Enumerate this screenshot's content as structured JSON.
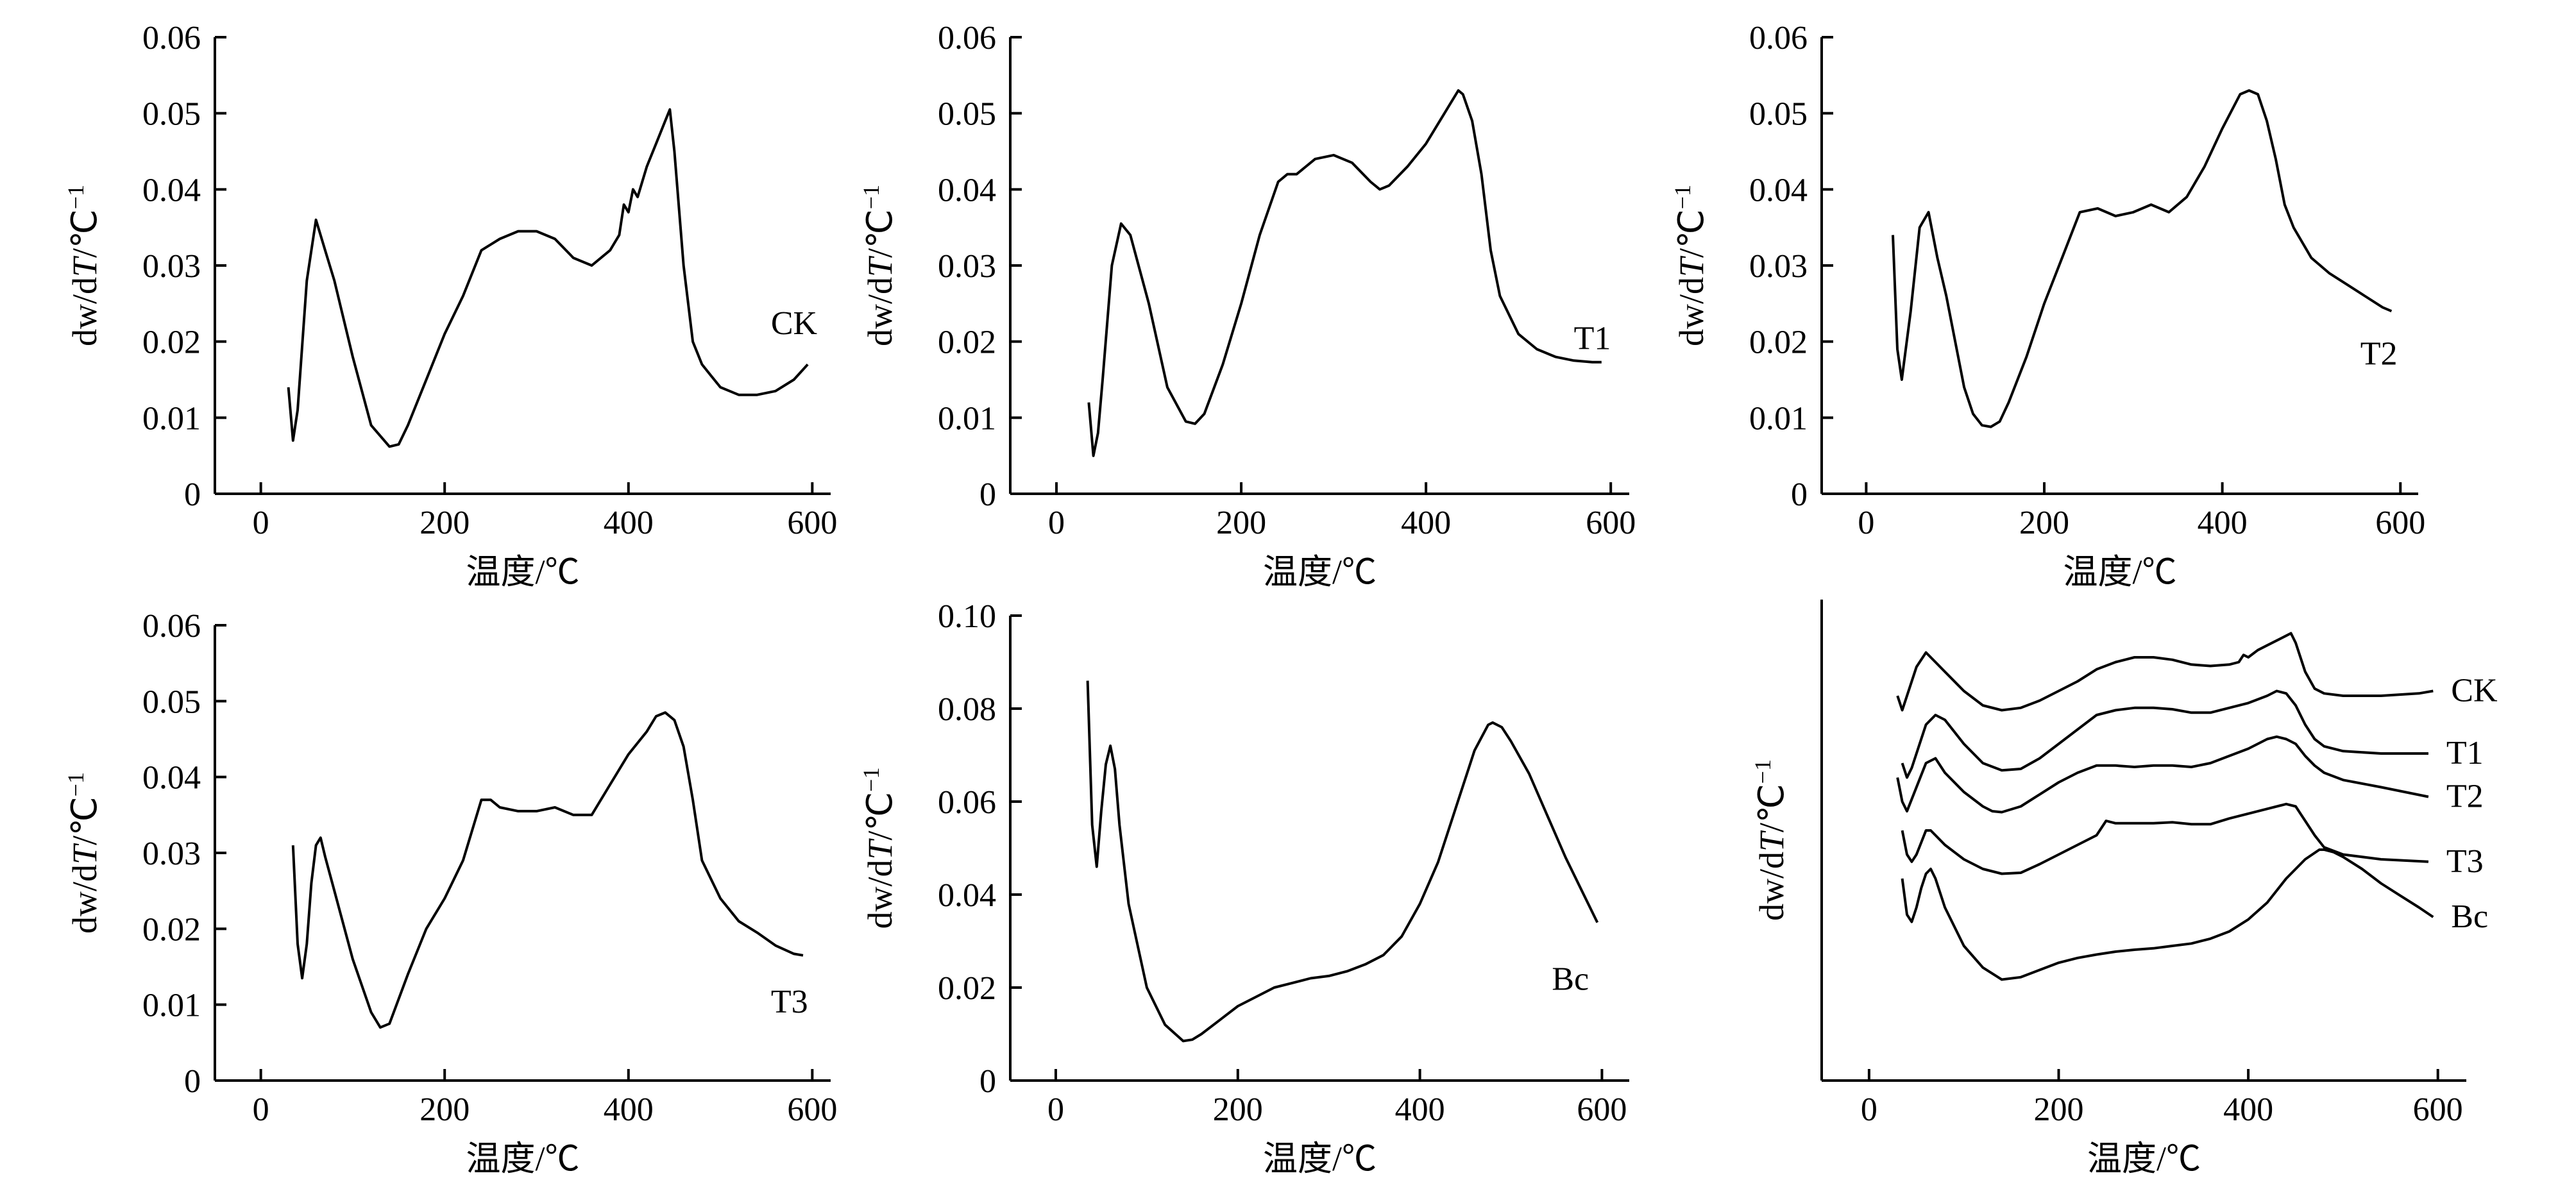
{
  "chart_data": [
    {
      "id": "CK",
      "type": "line",
      "title": "",
      "xlabel": "温度/℃",
      "ylabel": "dw/dT/℃⁻¹",
      "ylabel_parts": [
        "dw/d",
        "T",
        "/℃",
        "−1"
      ],
      "xlim": [
        -50,
        620
      ],
      "ylim": [
        0,
        0.06
      ],
      "xticks": [
        0,
        200,
        400,
        600
      ],
      "yticks": [
        0,
        0.01,
        0.02,
        0.03,
        0.04,
        0.05,
        0.06
      ],
      "ytick_labels": [
        "0",
        "0.01",
        "0.02",
        "0.03",
        "0.04",
        "0.05",
        "0.06"
      ],
      "label": "CK",
      "label_at": [
        555,
        0.0225
      ],
      "x": [
        30,
        35,
        40,
        50,
        60,
        70,
        80,
        100,
        120,
        140,
        150,
        160,
        180,
        200,
        220,
        240,
        260,
        280,
        300,
        320,
        340,
        360,
        380,
        390,
        395,
        400,
        405,
        410,
        420,
        430,
        440,
        445,
        450,
        460,
        470,
        480,
        490,
        500,
        520,
        540,
        560,
        580,
        595
      ],
      "y": [
        0.014,
        0.007,
        0.011,
        0.028,
        0.036,
        0.032,
        0.028,
        0.018,
        0.009,
        0.0062,
        0.0065,
        0.009,
        0.015,
        0.021,
        0.026,
        0.032,
        0.0335,
        0.0345,
        0.0345,
        0.0335,
        0.031,
        0.03,
        0.032,
        0.034,
        0.038,
        0.037,
        0.04,
        0.039,
        0.043,
        0.046,
        0.049,
        0.0505,
        0.045,
        0.03,
        0.02,
        0.017,
        0.0155,
        0.014,
        0.013,
        0.013,
        0.0135,
        0.015,
        0.017
      ]
    },
    {
      "id": "T1",
      "type": "line",
      "title": "",
      "xlabel": "温度/℃",
      "ylabel": "dw/dT/℃⁻¹",
      "ylabel_parts": [
        "dw/d",
        "T",
        "/℃",
        "−1"
      ],
      "xlim": [
        -50,
        620
      ],
      "ylim": [
        0,
        0.06
      ],
      "xticks": [
        0,
        200,
        400,
        600
      ],
      "yticks": [
        0,
        0.01,
        0.02,
        0.03,
        0.04,
        0.05,
        0.06
      ],
      "ytick_labels": [
        "0",
        "0.01",
        "0.02",
        "0.03",
        "0.04",
        "0.05",
        "0.06"
      ],
      "label": "T1",
      "label_at": [
        560,
        0.0205
      ],
      "x": [
        35,
        40,
        45,
        50,
        60,
        70,
        80,
        100,
        120,
        140,
        150,
        160,
        180,
        200,
        220,
        240,
        250,
        260,
        280,
        300,
        320,
        340,
        350,
        360,
        380,
        400,
        420,
        435,
        440,
        450,
        460,
        470,
        480,
        500,
        520,
        540,
        560,
        580,
        590
      ],
      "y": [
        0.012,
        0.005,
        0.008,
        0.015,
        0.03,
        0.0355,
        0.034,
        0.025,
        0.014,
        0.0095,
        0.0092,
        0.0105,
        0.017,
        0.025,
        0.034,
        0.041,
        0.042,
        0.042,
        0.044,
        0.0445,
        0.0435,
        0.041,
        0.04,
        0.0405,
        0.043,
        0.046,
        0.05,
        0.053,
        0.0525,
        0.049,
        0.042,
        0.032,
        0.026,
        0.021,
        0.019,
        0.018,
        0.0175,
        0.0173,
        0.0173
      ]
    },
    {
      "id": "T2",
      "type": "line",
      "title": "",
      "xlabel": "温度/℃",
      "ylabel": "dw/dT/℃⁻¹",
      "ylabel_parts": [
        "dw/d",
        "T",
        "/℃",
        "−1"
      ],
      "xlim": [
        -50,
        620
      ],
      "ylim": [
        0,
        0.06
      ],
      "xticks": [
        0,
        200,
        400,
        600
      ],
      "yticks": [
        0,
        0.01,
        0.02,
        0.03,
        0.04,
        0.05,
        0.06
      ],
      "ytick_labels": [
        "0",
        "0.01",
        "0.02",
        "0.03",
        "0.04",
        "0.05",
        "0.06"
      ],
      "label": "T2",
      "label_at": [
        555,
        0.0185
      ],
      "x": [
        30,
        35,
        40,
        50,
        60,
        70,
        80,
        90,
        100,
        110,
        120,
        130,
        140,
        150,
        160,
        180,
        200,
        220,
        240,
        260,
        280,
        300,
        320,
        340,
        360,
        380,
        400,
        420,
        430,
        440,
        450,
        460,
        470,
        480,
        500,
        520,
        540,
        560,
        580,
        590
      ],
      "y": [
        0.034,
        0.019,
        0.015,
        0.024,
        0.035,
        0.037,
        0.031,
        0.026,
        0.02,
        0.014,
        0.0105,
        0.009,
        0.0088,
        0.0095,
        0.012,
        0.018,
        0.025,
        0.031,
        0.037,
        0.0375,
        0.0365,
        0.037,
        0.038,
        0.037,
        0.039,
        0.043,
        0.048,
        0.0525,
        0.053,
        0.0525,
        0.049,
        0.044,
        0.038,
        0.035,
        0.031,
        0.029,
        0.0275,
        0.026,
        0.0245,
        0.024
      ]
    },
    {
      "id": "T3",
      "type": "line",
      "title": "",
      "xlabel": "温度/℃",
      "ylabel": "dw/dT/℃⁻¹",
      "ylabel_parts": [
        "dw/d",
        "T",
        "/℃",
        "−1"
      ],
      "xlim": [
        -50,
        620
      ],
      "ylim": [
        0,
        0.06
      ],
      "xticks": [
        0,
        200,
        400,
        600
      ],
      "yticks": [
        0,
        0.01,
        0.02,
        0.03,
        0.04,
        0.05,
        0.06
      ],
      "ytick_labels": [
        "0",
        "0.01",
        "0.02",
        "0.03",
        "0.04",
        "0.05",
        "0.06"
      ],
      "label": "T3",
      "label_at": [
        555,
        0.0105
      ],
      "x": [
        35,
        40,
        45,
        50,
        55,
        60,
        65,
        70,
        80,
        100,
        120,
        130,
        140,
        160,
        180,
        200,
        220,
        240,
        250,
        260,
        280,
        300,
        320,
        340,
        360,
        380,
        400,
        420,
        430,
        440,
        450,
        460,
        470,
        480,
        500,
        520,
        540,
        560,
        580,
        590
      ],
      "y": [
        0.031,
        0.018,
        0.0135,
        0.018,
        0.026,
        0.031,
        0.032,
        0.0295,
        0.025,
        0.016,
        0.009,
        0.007,
        0.0075,
        0.014,
        0.02,
        0.024,
        0.029,
        0.037,
        0.037,
        0.036,
        0.0355,
        0.0355,
        0.036,
        0.035,
        0.035,
        0.039,
        0.043,
        0.046,
        0.048,
        0.0485,
        0.0475,
        0.044,
        0.037,
        0.029,
        0.024,
        0.021,
        0.0195,
        0.0178,
        0.0167,
        0.0165
      ]
    },
    {
      "id": "Bc",
      "type": "line",
      "title": "",
      "xlabel": "温度/℃",
      "ylabel": "dw/dT/℃⁻¹",
      "ylabel_parts": [
        "dw/d",
        "T",
        "/℃",
        "−1"
      ],
      "xlim": [
        -50,
        630
      ],
      "ylim": [
        0,
        0.1
      ],
      "xticks": [
        0,
        200,
        400,
        600
      ],
      "yticks": [
        0,
        0.02,
        0.04,
        0.06,
        0.08,
        0.1
      ],
      "ytick_labels": [
        "0",
        "0.02",
        "0.04",
        "0.06",
        "0.08",
        "0.10"
      ],
      "label": "Bc",
      "label_at": [
        545,
        0.022
      ],
      "x": [
        35,
        40,
        45,
        50,
        55,
        60,
        65,
        70,
        80,
        100,
        120,
        140,
        150,
        160,
        180,
        200,
        220,
        240,
        260,
        280,
        300,
        320,
        340,
        360,
        380,
        400,
        420,
        440,
        460,
        475,
        480,
        490,
        500,
        520,
        540,
        560,
        580,
        595
      ],
      "y": [
        0.086,
        0.055,
        0.046,
        0.058,
        0.068,
        0.072,
        0.067,
        0.055,
        0.038,
        0.02,
        0.012,
        0.0085,
        0.0088,
        0.01,
        0.013,
        0.016,
        0.018,
        0.02,
        0.021,
        0.022,
        0.0225,
        0.0235,
        0.025,
        0.027,
        0.031,
        0.038,
        0.047,
        0.059,
        0.071,
        0.0765,
        0.077,
        0.076,
        0.073,
        0.066,
        0.057,
        0.048,
        0.04,
        0.034
      ]
    },
    {
      "id": "overlay",
      "type": "line",
      "title": "",
      "xlabel": "温度/℃",
      "ylabel": "dw/dT/℃⁻¹",
      "ylabel_parts": [
        "dw/d",
        "T",
        "/℃",
        "−1"
      ],
      "xlim": [
        -50,
        630
      ],
      "ylim": [
        0,
        1
      ],
      "xticks": [
        0,
        200,
        400,
        600
      ],
      "yticks": [],
      "ytick_labels": [],
      "note_scale": "relative (offset curves, no y tick values shown)",
      "series": [
        {
          "name": "CK",
          "x": [
            30,
            35,
            40,
            50,
            60,
            70,
            80,
            100,
            120,
            140,
            160,
            180,
            200,
            220,
            240,
            260,
            280,
            300,
            320,
            340,
            360,
            380,
            390,
            395,
            400,
            410,
            420,
            440,
            445,
            450,
            460,
            470,
            480,
            500,
            540,
            580,
            595
          ],
          "y": [
            0.8,
            0.77,
            0.8,
            0.86,
            0.89,
            0.87,
            0.85,
            0.81,
            0.78,
            0.77,
            0.775,
            0.79,
            0.81,
            0.83,
            0.855,
            0.87,
            0.88,
            0.88,
            0.875,
            0.865,
            0.862,
            0.865,
            0.87,
            0.885,
            0.88,
            0.895,
            0.905,
            0.925,
            0.93,
            0.91,
            0.85,
            0.815,
            0.805,
            0.8,
            0.8,
            0.805,
            0.81
          ]
        },
        {
          "name": "T1",
          "x": [
            35,
            40,
            45,
            50,
            60,
            70,
            80,
            100,
            120,
            140,
            160,
            180,
            200,
            220,
            240,
            260,
            280,
            300,
            320,
            340,
            360,
            380,
            400,
            420,
            430,
            440,
            450,
            460,
            470,
            480,
            500,
            540,
            590
          ],
          "y": [
            0.66,
            0.63,
            0.65,
            0.68,
            0.74,
            0.76,
            0.75,
            0.7,
            0.66,
            0.645,
            0.648,
            0.67,
            0.7,
            0.73,
            0.76,
            0.77,
            0.775,
            0.775,
            0.772,
            0.765,
            0.765,
            0.775,
            0.785,
            0.8,
            0.81,
            0.805,
            0.78,
            0.74,
            0.71,
            0.695,
            0.685,
            0.68,
            0.68
          ]
        },
        {
          "name": "T2",
          "x": [
            30,
            35,
            40,
            50,
            60,
            70,
            80,
            100,
            120,
            130,
            140,
            160,
            180,
            200,
            220,
            240,
            260,
            280,
            300,
            320,
            340,
            360,
            380,
            400,
            420,
            430,
            440,
            450,
            460,
            470,
            480,
            500,
            540,
            590
          ],
          "y": [
            0.63,
            0.58,
            0.56,
            0.61,
            0.66,
            0.67,
            0.64,
            0.6,
            0.57,
            0.56,
            0.558,
            0.57,
            0.595,
            0.62,
            0.64,
            0.655,
            0.655,
            0.652,
            0.655,
            0.655,
            0.652,
            0.66,
            0.675,
            0.69,
            0.71,
            0.715,
            0.71,
            0.7,
            0.675,
            0.655,
            0.64,
            0.625,
            0.61,
            0.59
          ]
        },
        {
          "name": "T3",
          "x": [
            35,
            40,
            45,
            50,
            55,
            60,
            65,
            70,
            80,
            100,
            120,
            140,
            160,
            180,
            200,
            220,
            240,
            250,
            260,
            280,
            300,
            320,
            340,
            360,
            380,
            400,
            420,
            440,
            450,
            460,
            470,
            480,
            500,
            540,
            590
          ],
          "y": [
            0.52,
            0.47,
            0.455,
            0.47,
            0.495,
            0.52,
            0.52,
            0.51,
            0.49,
            0.46,
            0.44,
            0.43,
            0.432,
            0.45,
            0.47,
            0.49,
            0.51,
            0.54,
            0.535,
            0.535,
            0.535,
            0.537,
            0.533,
            0.533,
            0.545,
            0.555,
            0.565,
            0.575,
            0.57,
            0.54,
            0.51,
            0.485,
            0.47,
            0.46,
            0.455
          ]
        },
        {
          "name": "Bc",
          "x": [
            35,
            40,
            45,
            50,
            55,
            60,
            65,
            70,
            80,
            100,
            120,
            140,
            160,
            180,
            200,
            220,
            240,
            260,
            280,
            300,
            320,
            340,
            360,
            380,
            400,
            420,
            440,
            460,
            475,
            480,
            490,
            500,
            520,
            540,
            560,
            580,
            595
          ],
          "y": [
            0.42,
            0.345,
            0.33,
            0.36,
            0.4,
            0.43,
            0.44,
            0.42,
            0.36,
            0.28,
            0.235,
            0.21,
            0.215,
            0.23,
            0.245,
            0.255,
            0.262,
            0.268,
            0.272,
            0.275,
            0.28,
            0.285,
            0.295,
            0.31,
            0.335,
            0.37,
            0.42,
            0.46,
            0.48,
            0.48,
            0.475,
            0.465,
            0.44,
            0.41,
            0.385,
            0.36,
            0.34
          ]
        }
      ],
      "series_labels": [
        "CK",
        "T1",
        "T2",
        "T3",
        "Bc"
      ]
    }
  ]
}
